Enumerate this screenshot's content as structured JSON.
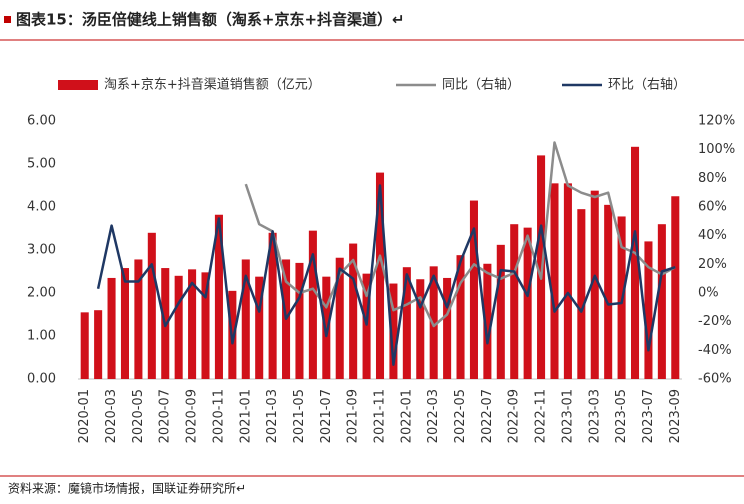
{
  "chart_data": {
    "type": "bar_line",
    "title": "图表15：汤臣倍健线上销售额（淘系+京东+抖音渠道）↵",
    "source": "资料来源：魔镜市场情报，国联证券研究所↵",
    "categories": [
      "2020-01",
      null,
      "2020-03",
      null,
      "2020-05",
      null,
      "2020-07",
      null,
      "2020-09",
      null,
      "2020-11",
      null,
      "2021-01",
      null,
      "2021-03",
      null,
      "2021-05",
      null,
      "2021-07",
      null,
      "2021-09",
      null,
      "2021-11",
      null,
      "2022-01",
      null,
      "2022-03",
      null,
      "2022-05",
      null,
      "2022-07",
      null,
      "2022-09",
      null,
      "2022-11",
      null,
      "2023-01",
      null,
      "2023-03",
      null,
      "2023-05",
      null,
      "2023-07",
      null,
      "2023-09"
    ],
    "series": [
      {
        "name": "淘系+京东+抖音渠道销售额（亿元）",
        "kind": "bar",
        "color": "#d0101a",
        "values": [
          1.55,
          1.6,
          2.35,
          2.58,
          2.78,
          3.4,
          2.58,
          2.4,
          2.55,
          2.48,
          3.82,
          2.05,
          2.78,
          2.38,
          3.4,
          2.78,
          2.7,
          3.45,
          2.38,
          2.82,
          3.15,
          2.45,
          4.8,
          2.22,
          2.6,
          2.32,
          2.62,
          2.35,
          2.88,
          4.15,
          2.68,
          3.12,
          3.6,
          3.52,
          5.2,
          4.55,
          4.55,
          3.95,
          4.38,
          4.05,
          3.78,
          5.4,
          3.2,
          3.6,
          4.25
        ]
      },
      {
        "name": "同比（右轴）",
        "kind": "line",
        "axis": "y2",
        "color": "#8c8c8c",
        "values": [
          null,
          null,
          null,
          null,
          null,
          null,
          null,
          null,
          null,
          null,
          null,
          null,
          76,
          48,
          43,
          8,
          0,
          3,
          -10,
          13,
          23,
          -2,
          26,
          -12,
          -8,
          -3,
          -23,
          -15,
          7,
          20,
          14,
          10,
          14,
          40,
          10,
          105,
          75,
          70,
          67,
          70,
          32,
          28,
          18,
          13,
          18
        ]
      },
      {
        "name": "环比（右轴）",
        "kind": "line",
        "axis": "y2",
        "color": "#1f3864",
        "values": [
          null,
          3,
          47,
          8,
          8,
          20,
          -23,
          -7,
          7,
          -3,
          52,
          -35,
          12,
          -13,
          43,
          -18,
          -3,
          27,
          -30,
          17,
          10,
          -22,
          75,
          -50,
          13,
          -10,
          12,
          -10,
          22,
          45,
          -35,
          16,
          15,
          -2,
          47,
          -13,
          0,
          -13,
          12,
          -8,
          -7,
          43,
          -40,
          15,
          18
        ]
      }
    ],
    "ylim": [
      0,
      6
    ],
    "yticks": [
      {
        "value": 0,
        "label": "0.00"
      },
      {
        "value": 1,
        "label": "1.00"
      },
      {
        "value": 2,
        "label": "2.00"
      },
      {
        "value": 3,
        "label": "3.00"
      },
      {
        "value": 4,
        "label": "4.00"
      },
      {
        "value": 5,
        "label": "5.00"
      },
      {
        "value": 6,
        "label": "6.00"
      }
    ],
    "y2lim": [
      -60,
      120
    ],
    "y2ticks": [
      {
        "value": -60,
        "label": "-60%"
      },
      {
        "value": -40,
        "label": "-40%"
      },
      {
        "value": -20,
        "label": "-20%"
      },
      {
        "value": 0,
        "label": "0%"
      },
      {
        "value": 20,
        "label": "20%"
      },
      {
        "value": 40,
        "label": "40%"
      },
      {
        "value": 60,
        "label": "60%"
      },
      {
        "value": 80,
        "label": "80%"
      },
      {
        "value": 100,
        "label": "100%"
      },
      {
        "value": 120,
        "label": "120%"
      }
    ],
    "legend": "top"
  }
}
